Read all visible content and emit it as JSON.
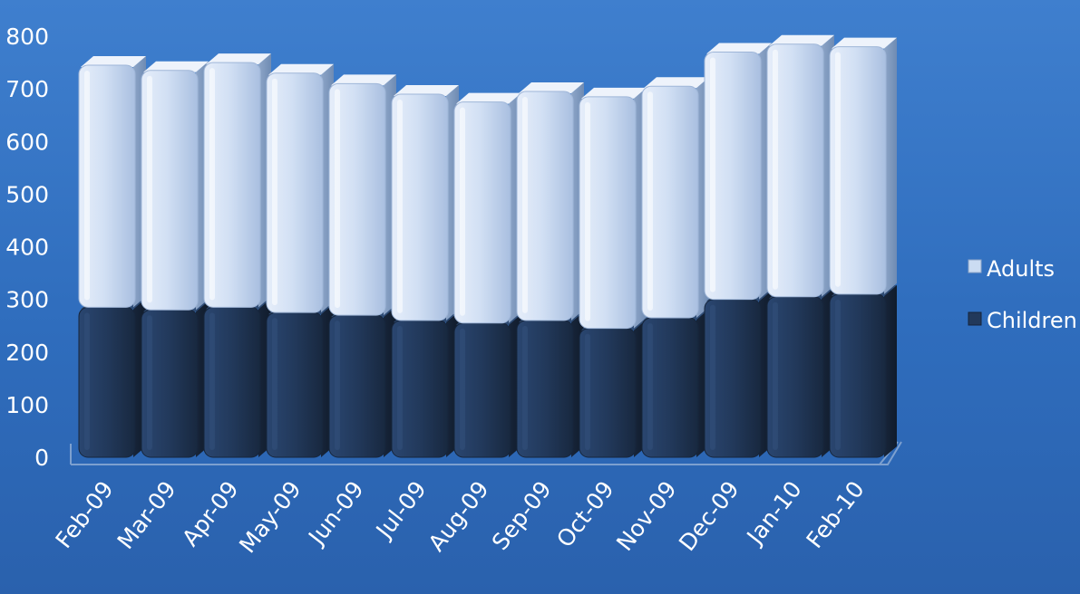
{
  "chart_data": {
    "type": "bar",
    "stacked": true,
    "categories": [
      "Feb-09",
      "Mar-09",
      "Apr-09",
      "May-09",
      "Jun-09",
      "Jul-09",
      "Aug-09",
      "Sep-09",
      "Oct-09",
      "Nov-09",
      "Dec-09",
      "Jan-10",
      "Feb-10"
    ],
    "series": [
      {
        "name": "Children",
        "values": [
          285,
          280,
          285,
          275,
          270,
          260,
          255,
          260,
          245,
          265,
          300,
          305,
          310
        ]
      },
      {
        "name": "Adults",
        "values": [
          460,
          455,
          465,
          455,
          440,
          430,
          420,
          435,
          440,
          440,
          470,
          480,
          470
        ]
      }
    ],
    "ylim": [
      0,
      800
    ],
    "yticks": [
      0,
      100,
      200,
      300,
      400,
      500,
      600,
      700,
      800
    ],
    "title": "",
    "xlabel": "",
    "ylabel": "",
    "grid": false,
    "legend_position": "right",
    "colors": {
      "Children": "#22395b",
      "Adults": "#cbdcf2",
      "background": "#3a78c8"
    }
  }
}
